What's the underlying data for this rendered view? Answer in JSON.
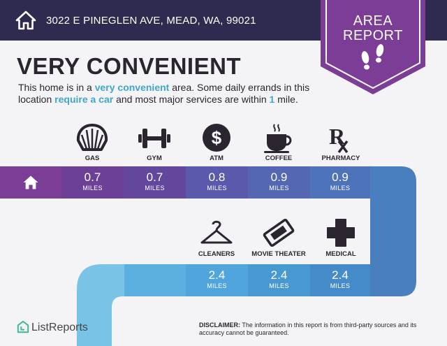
{
  "header": {
    "address": "3022 E PINEGLEN AVE, MEAD, WA, 99021",
    "badge_line1": "AREA",
    "badge_line2": "REPORT"
  },
  "headline": "VERY CONVENIENT",
  "description": {
    "part1": "This home is in a ",
    "highlight1": "very convenient",
    "part2": " area. Some daily errands in this location ",
    "highlight2": "require a car",
    "part3": " and most major services are within ",
    "highlight3": "1",
    "part4": " mile."
  },
  "services_row1": [
    {
      "label": "GAS",
      "distance": "0.7",
      "unit": "MILES",
      "icon": "gas-shell-icon"
    },
    {
      "label": "GYM",
      "distance": "0.7",
      "unit": "MILES",
      "icon": "dumbbell-icon"
    },
    {
      "label": "ATM",
      "distance": "0.8",
      "unit": "MILES",
      "icon": "dollar-icon"
    },
    {
      "label": "COFFEE",
      "distance": "0.9",
      "unit": "MILES",
      "icon": "coffee-cup-icon"
    },
    {
      "label": "PHARMACY",
      "distance": "0.9",
      "unit": "MILES",
      "icon": "rx-icon"
    }
  ],
  "services_row2": [
    {
      "label": "CLEANERS",
      "distance": "2.4",
      "unit": "MILES",
      "icon": "hanger-icon"
    },
    {
      "label": "MOVIE THEATER",
      "distance": "2.4",
      "unit": "MILES",
      "icon": "ticket-icon"
    },
    {
      "label": "MEDICAL",
      "distance": "2.4",
      "unit": "MILES",
      "icon": "medical-cross-icon"
    }
  ],
  "footer": {
    "logo": "ListReports",
    "disclaimer_label": "DISCLAIMER:",
    "disclaimer_text": " The information in this report is from third-party sources and its accuracy cannot be guaranteed."
  },
  "colors": {
    "header_bg": "#2f2a4f",
    "badge": "#7b3d96",
    "accent": "#3fa7c9"
  }
}
